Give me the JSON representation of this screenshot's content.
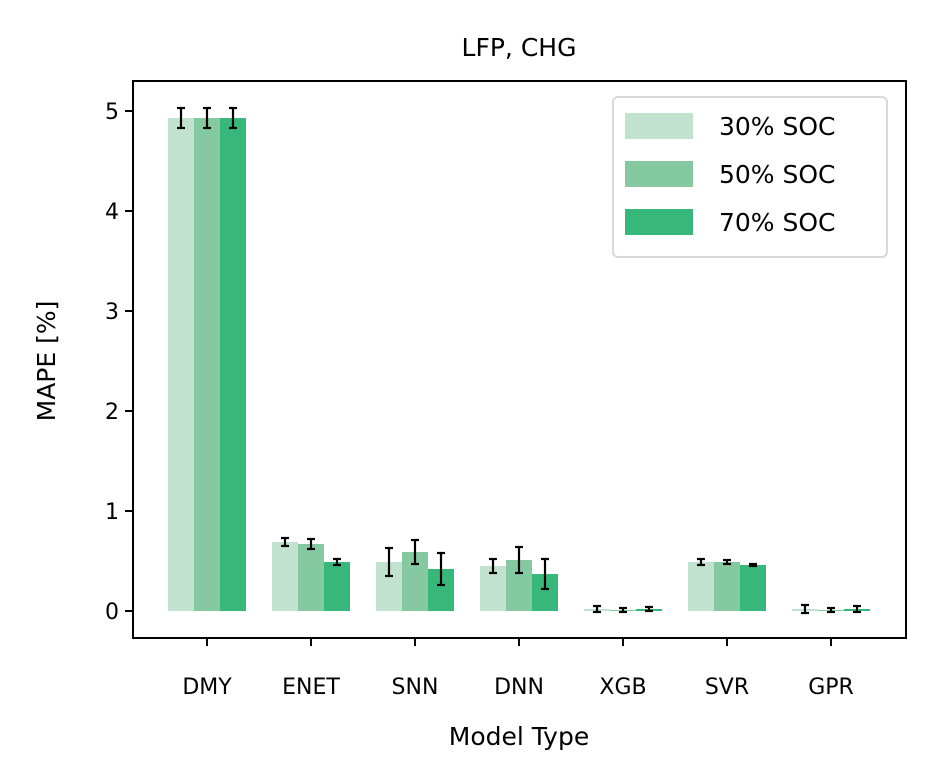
{
  "chart_data": {
    "type": "bar",
    "title": "LFP, CHG",
    "xlabel": "Model Type",
    "ylabel": "MAPE [%]",
    "ylim": [
      -0.27,
      5.3
    ],
    "yticks": [
      0,
      1,
      2,
      3,
      4,
      5
    ],
    "categories": [
      "DMY",
      "ENET",
      "SNN",
      "DNN",
      "XGB",
      "SVR",
      "GPR"
    ],
    "series": [
      {
        "name": "30% SOC",
        "color": "#c1e2cf",
        "values": [
          4.93,
          0.69,
          0.49,
          0.45,
          0.02,
          0.49,
          0.02
        ],
        "errors": [
          0.1,
          0.04,
          0.14,
          0.07,
          0.03,
          0.03,
          0.04
        ]
      },
      {
        "name": "50% SOC",
        "color": "#85c9a0",
        "values": [
          4.93,
          0.67,
          0.59,
          0.51,
          0.01,
          0.49,
          0.01
        ],
        "errors": [
          0.1,
          0.05,
          0.12,
          0.13,
          0.02,
          0.02,
          0.02
        ]
      },
      {
        "name": "70% SOC",
        "color": "#38b77a",
        "values": [
          4.93,
          0.49,
          0.42,
          0.37,
          0.02,
          0.46,
          0.02
        ],
        "errors": [
          0.1,
          0.03,
          0.16,
          0.15,
          0.02,
          0.01,
          0.03
        ]
      }
    ],
    "grid": false,
    "legend_position": "top-right"
  }
}
